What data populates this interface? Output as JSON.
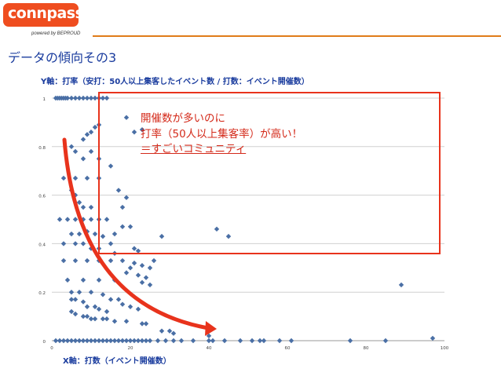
{
  "header": {
    "logo_text": "connpass",
    "powered_by": "powered by BEPROUD"
  },
  "slide": {
    "title": "データの傾向その3"
  },
  "callout": {
    "line1": "開催数が多いのに",
    "line2": "打率（50人以上集客率）が高い！",
    "line3": "＝すごいコミュニティ"
  },
  "colors": {
    "brand": "#ef4d1f",
    "title_blue": "#1a3c9e",
    "marker": "#4a6fa5",
    "callout_red": "#e8331c",
    "arrow_red": "#e8331c"
  },
  "chart_data": {
    "type": "scatter",
    "title": "",
    "xlabel": "X軸：打数（イベント開催数）",
    "ylabel": "Y軸：打率（安打：50人以上集客したイベント数 / 打数：イベント開催数）",
    "xlim": [
      0,
      100
    ],
    "ylim": [
      0,
      1
    ],
    "x_ticks": [
      "0",
      "20",
      "40",
      "60",
      "80",
      "100"
    ],
    "y_ticks": [
      "0",
      "0.2",
      "0.4",
      "0.6",
      "0.8",
      "1"
    ],
    "grid": true,
    "marker_color": "#4a6fa5",
    "points": [
      [
        1,
        1
      ],
      [
        1.5,
        1
      ],
      [
        2,
        1
      ],
      [
        2.5,
        1
      ],
      [
        3,
        1
      ],
      [
        3.5,
        1
      ],
      [
        4,
        1
      ],
      [
        5,
        1
      ],
      [
        6,
        1
      ],
      [
        7,
        1
      ],
      [
        8,
        1
      ],
      [
        9,
        1
      ],
      [
        10,
        1
      ],
      [
        11,
        1
      ],
      [
        12,
        1
      ],
      [
        13,
        1
      ],
      [
        14,
        1
      ],
      [
        19,
        0.92
      ],
      [
        23,
        0.87
      ],
      [
        8,
        0.83
      ],
      [
        9,
        0.85
      ],
      [
        10,
        0.86
      ],
      [
        11,
        0.88
      ],
      [
        12,
        0.89
      ],
      [
        21,
        0.86
      ],
      [
        5,
        0.8
      ],
      [
        6,
        0.78
      ],
      [
        8,
        0.75
      ],
      [
        10,
        0.78
      ],
      [
        12,
        0.75
      ],
      [
        15,
        0.72
      ],
      [
        3,
        0.67
      ],
      [
        6,
        0.67
      ],
      [
        9,
        0.67
      ],
      [
        12,
        0.67
      ],
      [
        5,
        0.62
      ],
      [
        6,
        0.6
      ],
      [
        7,
        0.57
      ],
      [
        8,
        0.55
      ],
      [
        10,
        0.55
      ],
      [
        18,
        0.55
      ],
      [
        19,
        0.59
      ],
      [
        17,
        0.62
      ],
      [
        2,
        0.5
      ],
      [
        4,
        0.5
      ],
      [
        6,
        0.5
      ],
      [
        8,
        0.5
      ],
      [
        10,
        0.5
      ],
      [
        12,
        0.5
      ],
      [
        14,
        0.5
      ],
      [
        18,
        0.47
      ],
      [
        20,
        0.47
      ],
      [
        5,
        0.44
      ],
      [
        7,
        0.44
      ],
      [
        9,
        0.45
      ],
      [
        11,
        0.44
      ],
      [
        13,
        0.43
      ],
      [
        16,
        0.44
      ],
      [
        3,
        0.4
      ],
      [
        6,
        0.4
      ],
      [
        8,
        0.4
      ],
      [
        10,
        0.38
      ],
      [
        12,
        0.38
      ],
      [
        15,
        0.4
      ],
      [
        16,
        0.36
      ],
      [
        21,
        0.38
      ],
      [
        22,
        0.37
      ],
      [
        3,
        0.33
      ],
      [
        6,
        0.33
      ],
      [
        9,
        0.33
      ],
      [
        12,
        0.33
      ],
      [
        15,
        0.33
      ],
      [
        18,
        0.33
      ],
      [
        20,
        0.3
      ],
      [
        21,
        0.32
      ],
      [
        23,
        0.31
      ],
      [
        25,
        0.3
      ],
      [
        26,
        0.33
      ],
      [
        4,
        0.25
      ],
      [
        8,
        0.25
      ],
      [
        12,
        0.25
      ],
      [
        16,
        0.25
      ],
      [
        19,
        0.28
      ],
      [
        22,
        0.27
      ],
      [
        24,
        0.26
      ],
      [
        23,
        0.24
      ],
      [
        25,
        0.23
      ],
      [
        5,
        0.2
      ],
      [
        7,
        0.2
      ],
      [
        10,
        0.2
      ],
      [
        13,
        0.19
      ],
      [
        15,
        0.17
      ],
      [
        17,
        0.17
      ],
      [
        18,
        0.15
      ],
      [
        20,
        0.14
      ],
      [
        22,
        0.13
      ],
      [
        5,
        0.17
      ],
      [
        6,
        0.17
      ],
      [
        8,
        0.16
      ],
      [
        9,
        0.14
      ],
      [
        11,
        0.14
      ],
      [
        12,
        0.13
      ],
      [
        14,
        0.12
      ],
      [
        5,
        0.12
      ],
      [
        6,
        0.11
      ],
      [
        8,
        0.1
      ],
      [
        9,
        0.1
      ],
      [
        10,
        0.09
      ],
      [
        11,
        0.09
      ],
      [
        13,
        0.09
      ],
      [
        14,
        0.09
      ],
      [
        16,
        0.08
      ],
      [
        19,
        0.08
      ],
      [
        23,
        0.07
      ],
      [
        24,
        0.07
      ],
      [
        28,
        0.04
      ],
      [
        30,
        0.04
      ],
      [
        31,
        0.03
      ],
      [
        40,
        0.02
      ],
      [
        28,
        0.43
      ],
      [
        42,
        0.46
      ],
      [
        45,
        0.43
      ],
      [
        89,
        0.23
      ],
      [
        1,
        0
      ],
      [
        2,
        0
      ],
      [
        3,
        0
      ],
      [
        4,
        0
      ],
      [
        5,
        0
      ],
      [
        6,
        0
      ],
      [
        7,
        0
      ],
      [
        8,
        0
      ],
      [
        9,
        0
      ],
      [
        10,
        0
      ],
      [
        11,
        0
      ],
      [
        12,
        0
      ],
      [
        13,
        0
      ],
      [
        14,
        0
      ],
      [
        15,
        0
      ],
      [
        16,
        0
      ],
      [
        17,
        0
      ],
      [
        18,
        0
      ],
      [
        19,
        0
      ],
      [
        20,
        0
      ],
      [
        21,
        0
      ],
      [
        22,
        0
      ],
      [
        23,
        0
      ],
      [
        24,
        0
      ],
      [
        25,
        0
      ],
      [
        27,
        0
      ],
      [
        29,
        0
      ],
      [
        31,
        0
      ],
      [
        33,
        0
      ],
      [
        36,
        0
      ],
      [
        40,
        0
      ],
      [
        41,
        0
      ],
      [
        44,
        0
      ],
      [
        48,
        0
      ],
      [
        51,
        0
      ],
      [
        53,
        0
      ],
      [
        54,
        0
      ],
      [
        58,
        0
      ],
      [
        61,
        0
      ],
      [
        76,
        0
      ],
      [
        85,
        0
      ],
      [
        97,
        0.01
      ]
    ]
  }
}
